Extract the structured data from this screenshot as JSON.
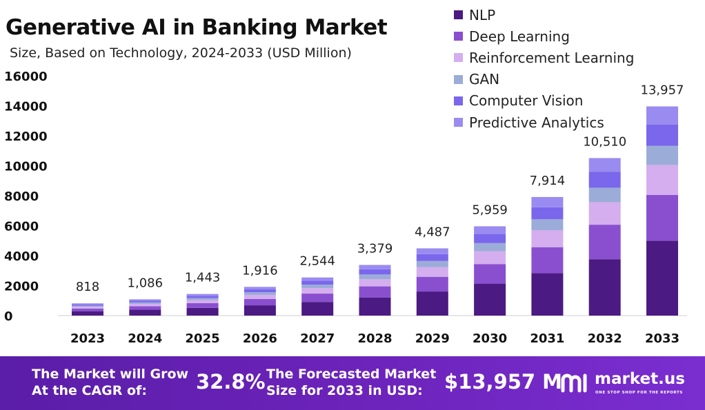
{
  "title": "Generative AI in Banking Market",
  "subtitle": "Size, Based on Technology, 2024-2033 (USD Million)",
  "chart_data": {
    "type": "bar",
    "stacked": true,
    "categories": [
      "2023",
      "2024",
      "2025",
      "2026",
      "2027",
      "2028",
      "2029",
      "2030",
      "2031",
      "2032",
      "2033"
    ],
    "totals": [
      818,
      1086,
      1443,
      1916,
      2544,
      3379,
      4487,
      5959,
      7914,
      10510,
      13957
    ],
    "total_labels": [
      "818",
      "1,086",
      "1,443",
      "1,916",
      "2,544",
      "3,379",
      "4,487",
      "5,959",
      "7,914",
      "10,510",
      "13,957"
    ],
    "series": [
      {
        "name": "NLP",
        "color": "#4b1a82",
        "values": [
          293,
          389,
          516,
          686,
          911,
          1210,
          1606,
          2133,
          2833,
          3762,
          4996
        ]
      },
      {
        "name": "Deep Learning",
        "color": "#8a4fcf",
        "values": [
          179,
          238,
          316,
          420,
          557,
          740,
          983,
          1305,
          1733,
          2302,
          3057
        ]
      },
      {
        "name": "Reinforcement Learning",
        "color": "#d4aeee",
        "values": [
          117,
          155,
          206,
          274,
          364,
          483,
          642,
          852,
          1132,
          1503,
          1996
        ]
      },
      {
        "name": "GAN",
        "color": "#9cacd8",
        "values": [
          75,
          100,
          132,
          176,
          234,
          310,
          412,
          547,
          726,
          965,
          1281
        ]
      },
      {
        "name": "Computer Vision",
        "color": "#7a67ec",
        "values": [
          83,
          110,
          147,
          195,
          259,
          344,
          457,
          607,
          806,
          1071,
          1422
        ]
      },
      {
        "name": "Predictive Analytics",
        "color": "#9a8bf0",
        "values": [
          71,
          94,
          126,
          165,
          219,
          292,
          387,
          515,
          684,
          907,
          1205
        ]
      }
    ],
    "y_ticks": [
      "16000",
      "14000",
      "12000",
      "10000",
      "8000",
      "6000",
      "4000",
      "2000",
      "0"
    ],
    "ylim": [
      0,
      16000
    ],
    "grid": false,
    "legend": "top-right"
  },
  "footer": {
    "cagr_text_line1": "The Market will Grow",
    "cagr_text_line2": "At the CAGR of:",
    "cagr_value": "32.8%",
    "forecast_text_line1": "The Forecasted Market",
    "forecast_text_line2": "Size for 2033 in USD:",
    "forecast_value": "$13,957 M",
    "brand_name": "market.us",
    "brand_tagline": "ONE STOP SHOP FOR THE REPORTS"
  }
}
